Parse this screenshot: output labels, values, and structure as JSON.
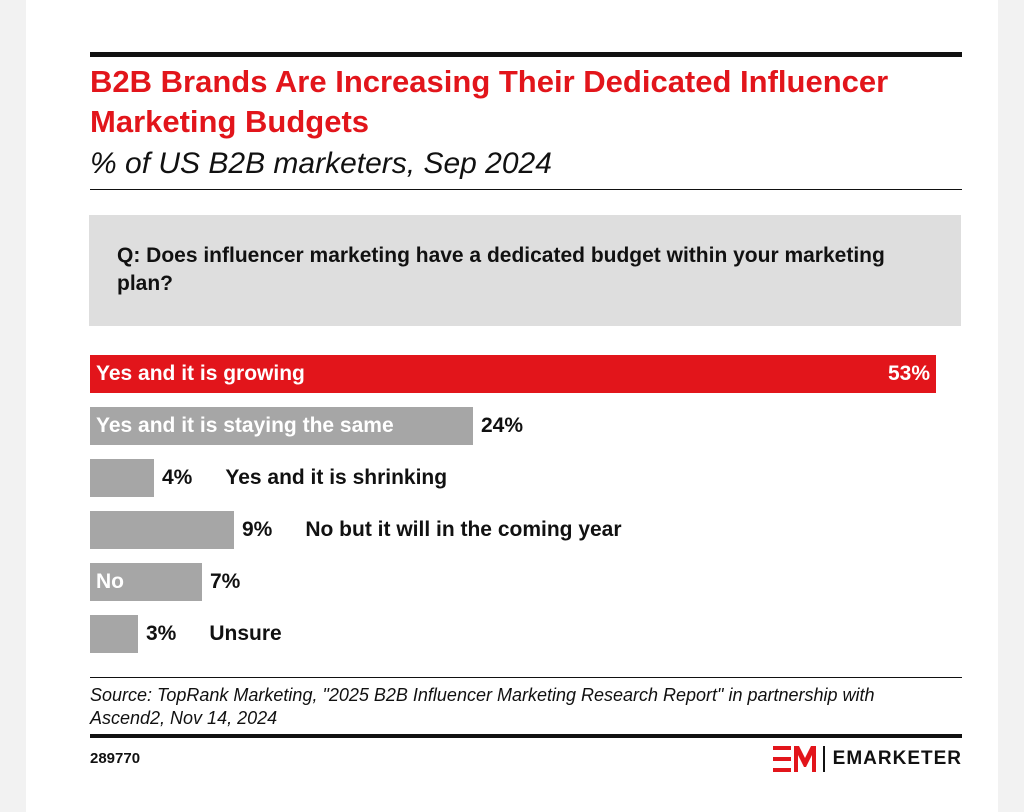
{
  "header": {
    "title": "B2B Brands Are Increasing Their Dedicated Influencer Marketing Budgets",
    "subtitle": "% of US B2B marketers, Sep 2024"
  },
  "question": "Q: Does influencer marketing have a dedicated budget within your marketing plan?",
  "chart_data": {
    "type": "bar",
    "orientation": "horizontal",
    "title": "B2B Brands Are Increasing Their Dedicated Influencer Marketing Budgets",
    "subtitle": "% of US B2B marketers, Sep 2024",
    "categories": [
      "Yes and it is growing",
      "Yes and it is staying the same",
      "Yes and it is shrinking",
      "No but it will in the coming year",
      "No",
      "Unsure"
    ],
    "values": [
      53,
      24,
      4,
      9,
      7,
      3
    ],
    "value_labels": [
      "53%",
      "24%",
      "4%",
      "9%",
      "7%",
      "3%"
    ],
    "unit": "%",
    "xlim": [
      0,
      53
    ],
    "grid": false,
    "colors": {
      "highlight": "#e2151b",
      "default": "#a6a6a6"
    }
  },
  "footer": {
    "source": "Source: TopRank Marketing, \"2025 B2B Influencer Marketing Research Report\" in partnership with Ascend2, Nov 14, 2024",
    "chart_id": "289770",
    "brand": "EMARKETER"
  },
  "colors": {
    "accent": "#e2151b",
    "question_bg": "#dedede"
  }
}
